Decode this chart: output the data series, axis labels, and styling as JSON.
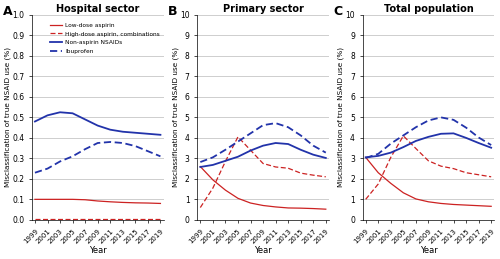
{
  "years": [
    1999,
    2001,
    2003,
    2005,
    2007,
    2009,
    2011,
    2013,
    2015,
    2017,
    2019
  ],
  "panels": [
    {
      "title": "Hospital sector",
      "label": "A",
      "ylim": [
        0,
        1.0
      ],
      "yticks": [
        0.0,
        0.1,
        0.2,
        0.3,
        0.4,
        0.5,
        0.6,
        0.7,
        0.8,
        0.9,
        1.0
      ],
      "yticklabels": [
        "0.0",
        "0.1",
        "0.2",
        "0.3",
        "0.4",
        "0.5",
        "0.6",
        "0.7",
        "0.8",
        "0.9",
        "1.0"
      ],
      "series": {
        "low_aspirin": [
          0.1,
          0.1,
          0.1,
          0.1,
          0.098,
          0.092,
          0.088,
          0.085,
          0.083,
          0.082,
          0.08
        ],
        "high_aspirin": [
          0.002,
          0.002,
          0.002,
          0.002,
          0.002,
          0.002,
          0.002,
          0.002,
          0.002,
          0.002,
          0.002
        ],
        "non_aspirin": [
          0.48,
          0.51,
          0.525,
          0.52,
          0.49,
          0.46,
          0.44,
          0.43,
          0.425,
          0.42,
          0.415
        ],
        "ibuprofen": [
          0.23,
          0.25,
          0.285,
          0.31,
          0.345,
          0.375,
          0.38,
          0.375,
          0.36,
          0.335,
          0.31
        ]
      }
    },
    {
      "title": "Primary sector",
      "label": "B",
      "ylim": [
        0,
        10
      ],
      "yticks": [
        0,
        1,
        2,
        3,
        4,
        5,
        6,
        7,
        8,
        9,
        10
      ],
      "yticklabels": [
        "0",
        "1",
        "2",
        "3",
        "4",
        "5",
        "6",
        "7",
        "8",
        "9",
        "10"
      ],
      "series": {
        "low_aspirin": [
          2.6,
          1.95,
          1.45,
          1.05,
          0.82,
          0.7,
          0.63,
          0.58,
          0.57,
          0.55,
          0.52
        ],
        "high_aspirin": [
          0.6,
          1.55,
          2.85,
          4.05,
          3.4,
          2.75,
          2.58,
          2.52,
          2.28,
          2.18,
          2.1
        ],
        "non_aspirin": [
          2.58,
          2.68,
          2.88,
          3.08,
          3.38,
          3.62,
          3.75,
          3.7,
          3.42,
          3.18,
          3.02
        ],
        "ibuprofen": [
          2.82,
          3.05,
          3.42,
          3.82,
          4.22,
          4.62,
          4.72,
          4.52,
          4.12,
          3.62,
          3.28
        ]
      }
    },
    {
      "title": "Total population",
      "label": "C",
      "ylim": [
        0,
        10
      ],
      "yticks": [
        0,
        1,
        2,
        3,
        4,
        5,
        6,
        7,
        8,
        9,
        10
      ],
      "yticklabels": [
        "0",
        "1",
        "2",
        "3",
        "4",
        "5",
        "6",
        "7",
        "8",
        "9",
        "10"
      ],
      "series": {
        "low_aspirin": [
          3.05,
          2.3,
          1.78,
          1.32,
          1.02,
          0.88,
          0.8,
          0.75,
          0.72,
          0.69,
          0.66
        ],
        "high_aspirin": [
          1.0,
          1.75,
          3.05,
          4.1,
          3.48,
          2.88,
          2.62,
          2.5,
          2.3,
          2.2,
          2.1
        ],
        "non_aspirin": [
          3.05,
          3.12,
          3.28,
          3.55,
          3.85,
          4.05,
          4.2,
          4.22,
          4.0,
          3.75,
          3.52
        ],
        "ibuprofen": [
          3.02,
          3.22,
          3.72,
          4.12,
          4.52,
          4.85,
          5.0,
          4.88,
          4.5,
          4.02,
          3.65
        ]
      }
    }
  ],
  "colors": {
    "low_aspirin": "#cc2222",
    "high_aspirin": "#cc2222",
    "non_aspirin": "#2233aa",
    "ibuprofen": "#2233aa"
  },
  "legend_labels": {
    "low_aspirin": "Low-dose aspirin",
    "high_aspirin": "High-dose aspirin, combinations",
    "non_aspirin": "Non-aspirin NSAIDs",
    "ibuprofen": "Ibuprofen"
  },
  "xlabel": "Year",
  "ylabel": "Misclassification of true NSAID use (%)"
}
